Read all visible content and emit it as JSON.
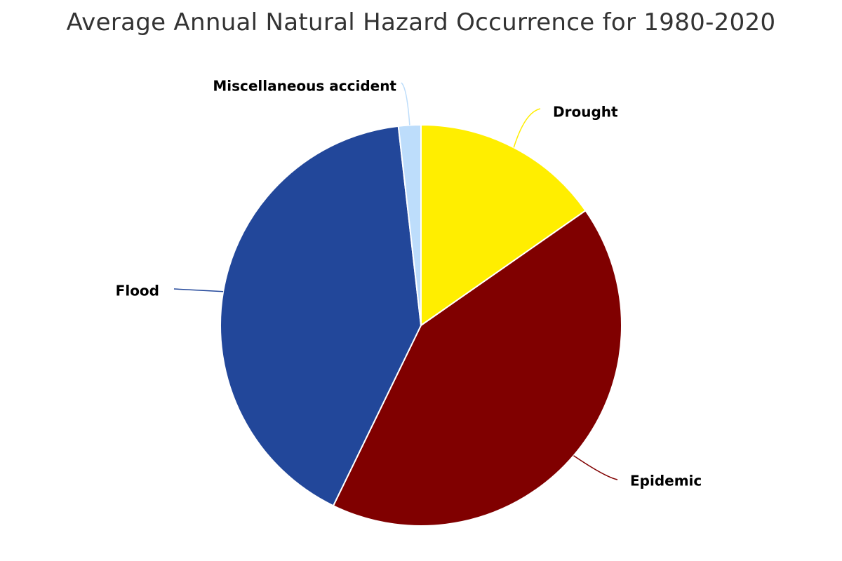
{
  "chart_data": {
    "type": "pie",
    "title": "Average Annual Natural Hazard Occurrence for 1980-2020",
    "start_angle_deg": 0,
    "direction": "clockwise",
    "slices": [
      {
        "label": "Drought",
        "value": 15.3,
        "color": "#FFEE00"
      },
      {
        "label": "Epidemic",
        "value": 41.9,
        "color": "#800000"
      },
      {
        "label": "Flood",
        "value": 41.0,
        "color": "#22479A"
      },
      {
        "label": "Miscellaneous accident",
        "value": 1.8,
        "color": "#BDDDFB"
      }
    ],
    "legend": "none",
    "data_labels": "category name outside with leader lines"
  }
}
